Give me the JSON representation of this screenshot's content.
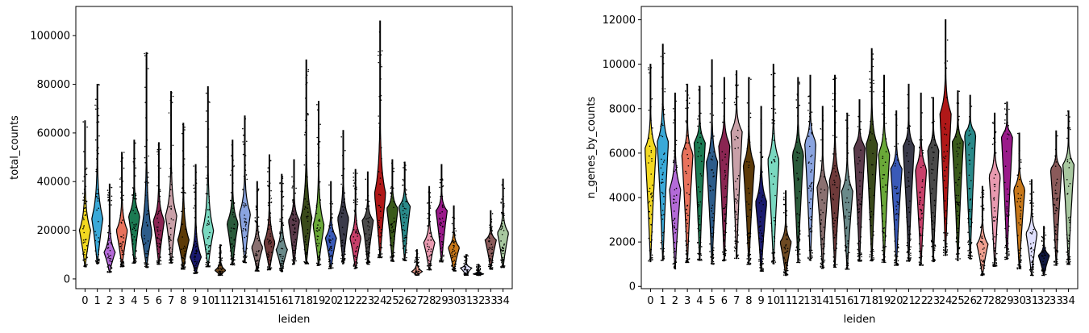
{
  "chart_data": [
    {
      "type": "violin",
      "xlabel": "leiden",
      "ylabel": "total_counts",
      "ylim": [
        -4000,
        112000
      ],
      "yticks": [
        0,
        20000,
        40000,
        60000,
        80000,
        100000
      ],
      "categories": [
        "0",
        "1",
        "2",
        "3",
        "4",
        "5",
        "6",
        "7",
        "8",
        "9",
        "10",
        "11",
        "12",
        "13",
        "14",
        "15",
        "16",
        "17",
        "18",
        "19",
        "20",
        "21",
        "22",
        "23",
        "24",
        "25",
        "26",
        "27",
        "28",
        "29",
        "30",
        "31",
        "32",
        "33",
        "34"
      ],
      "colors": [
        "#f2d820",
        "#3aa9d8",
        "#b46ad8",
        "#e8725c",
        "#1b7a52",
        "#2d5c8a",
        "#8a2552",
        "#c9a0a8",
        "#5c3a08",
        "#1a1a6e",
        "#7ad8c0",
        "#6e4a22",
        "#2a5a3a",
        "#8aa4e0",
        "#8a7070",
        "#6e3a3a",
        "#6a8a8a",
        "#5a3a4a",
        "#3a4a1a",
        "#6aa838",
        "#3a5ab8",
        "#3a3a4a",
        "#c8406a",
        "#4a4a4a",
        "#b01818",
        "#3a5a1a",
        "#2a8a8a",
        "#f0a090",
        "#e89ab0",
        "#9a1a8a",
        "#c8781a",
        "#e0e0ff",
        "#101840",
        "#8a5a5a",
        "#a8c8a0"
      ],
      "series": [
        {
          "name": "total_counts",
          "medians": [
            20000,
            25000,
            11000,
            20000,
            26000,
            19000,
            24000,
            26000,
            16000,
            9000,
            20000,
            3500,
            23000,
            27000,
            13000,
            15000,
            12000,
            24000,
            25000,
            22000,
            17000,
            25000,
            17000,
            24000,
            35000,
            29000,
            30000,
            3000,
            15000,
            28000,
            13000,
            4500,
            2000,
            16000,
            19000
          ],
          "maxes": [
            65000,
            80000,
            39000,
            52000,
            57000,
            93000,
            56000,
            77000,
            64000,
            47000,
            79000,
            14000,
            57000,
            67000,
            40000,
            51000,
            43000,
            49000,
            90000,
            73000,
            40000,
            61000,
            45000,
            44000,
            106000,
            49000,
            48000,
            12000,
            38000,
            47000,
            30000,
            10000,
            6000,
            28000,
            41000
          ]
        }
      ]
    },
    {
      "type": "violin",
      "xlabel": "leiden",
      "ylabel": "n_genes_by_counts",
      "ylim": [
        -100,
        12600
      ],
      "yticks": [
        0,
        2000,
        4000,
        6000,
        8000,
        10000,
        12000
      ],
      "categories": [
        "0",
        "1",
        "2",
        "3",
        "4",
        "5",
        "6",
        "7",
        "8",
        "9",
        "10",
        "11",
        "12",
        "13",
        "14",
        "15",
        "16",
        "17",
        "18",
        "19",
        "20",
        "21",
        "22",
        "23",
        "24",
        "25",
        "26",
        "27",
        "28",
        "29",
        "30",
        "31",
        "32",
        "33",
        "34"
      ],
      "colors": [
        "#f2d820",
        "#3aa9d8",
        "#b46ad8",
        "#e8725c",
        "#1b7a52",
        "#2d5c8a",
        "#8a2552",
        "#c9a0a8",
        "#5c3a08",
        "#1a1a6e",
        "#7ad8c0",
        "#6e4a22",
        "#2a5a3a",
        "#8aa4e0",
        "#8a7070",
        "#6e3a3a",
        "#6a8a8a",
        "#5a3a4a",
        "#3a4a1a",
        "#6aa838",
        "#3a5ab8",
        "#3a3a4a",
        "#c8406a",
        "#4a4a4a",
        "#b01818",
        "#3a5a1a",
        "#2a8a8a",
        "#f0a090",
        "#e89ab0",
        "#9a1a8a",
        "#c8781a",
        "#e0e0ff",
        "#101840",
        "#8a5a5a",
        "#a8c8a0"
      ],
      "series": [
        {
          "name": "n_genes_by_counts",
          "medians": [
            6200,
            6500,
            4400,
            6000,
            6500,
            5600,
            6400,
            7000,
            5500,
            3800,
            5700,
            2000,
            6000,
            6500,
            4500,
            4800,
            4300,
            6300,
            6400,
            6000,
            5300,
            6300,
            5300,
            6200,
            7800,
            6500,
            6900,
            1900,
            5000,
            6800,
            4400,
            2400,
            1400,
            5300,
            5500
          ],
          "maxes": [
            10000,
            10900,
            8700,
            9100,
            9000,
            10200,
            9400,
            9700,
            9400,
            8100,
            10000,
            4300,
            9400,
            9500,
            8100,
            9500,
            7800,
            8400,
            10700,
            9500,
            7900,
            9100,
            8700,
            8500,
            12000,
            8800,
            8600,
            4500,
            7800,
            8300,
            6900,
            4800,
            2700,
            7000,
            7900
          ]
        }
      ]
    }
  ]
}
